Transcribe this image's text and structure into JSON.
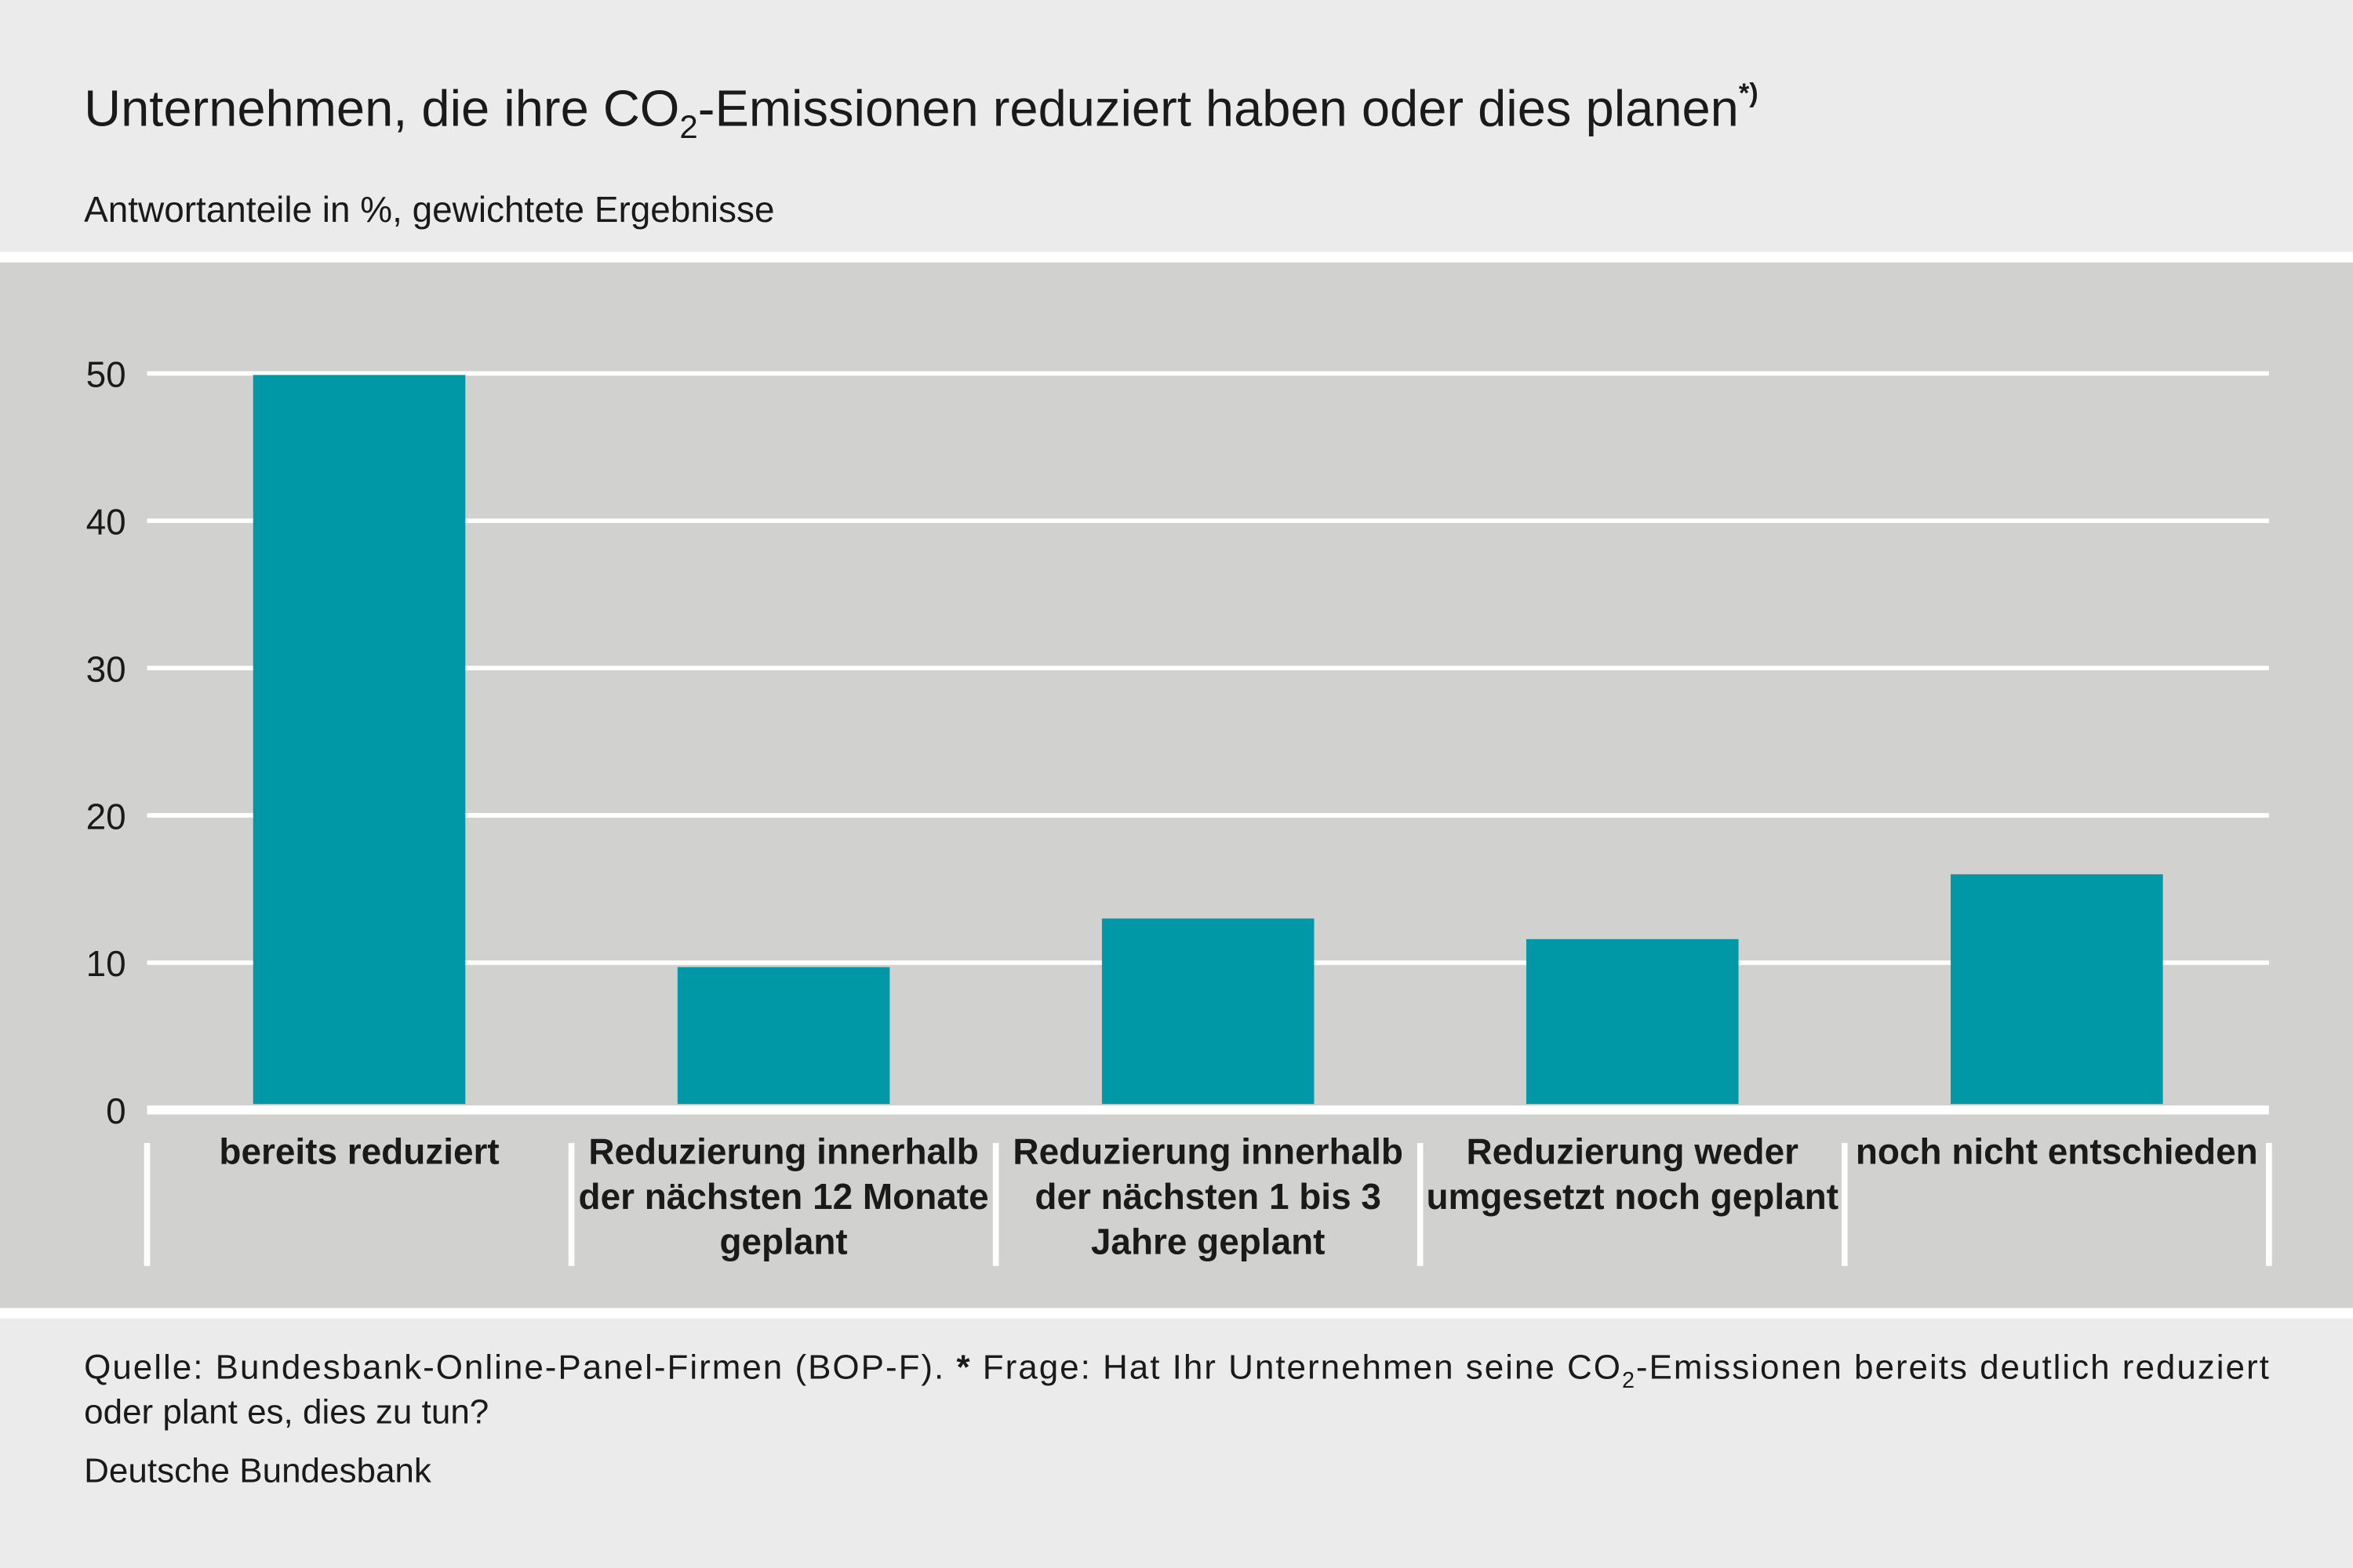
{
  "chart_data": {
    "type": "bar",
    "title": [
      "Unternehmen, die ihre CO",
      "2",
      "-Emissionen reduziert haben oder dies planen",
      "*)"
    ],
    "subtitle": "Antwortanteile in %, gewichtete Ergebnisse",
    "categories": [
      "bereits reduziert",
      "Reduzierung innerhalb der nächsten 12 Monate geplant",
      "Reduzierung innerhalb der nächsten 1 bis 3 Jahre geplant",
      "Reduzierung weder umgesetzt noch geplant",
      "noch nicht entschieden"
    ],
    "values": [
      49.9,
      9.7,
      13.0,
      11.6,
      16.0
    ],
    "color": "#0098a6",
    "ylim": [
      0,
      50
    ],
    "yticks": [
      0,
      10,
      20,
      30,
      40,
      50
    ],
    "grid": true,
    "footnote": {
      "line1": [
        "Quelle: Bundesbank-Online-Panel-Firmen (BOP-F). ",
        "*",
        " Frage: Hat Ihr Unternehmen seine CO",
        "2",
        "-Emissionen bereits deutlich reduziert"
      ],
      "line2": "oder plant es, dies zu tun?"
    },
    "source": "Deutsche Bundesbank"
  }
}
